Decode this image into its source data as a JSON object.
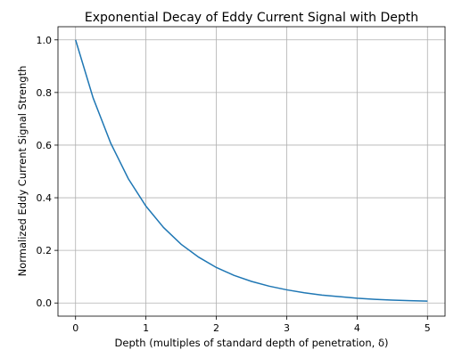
{
  "chart_data": {
    "type": "line",
    "title": "Exponential Decay of Eddy Current Signal with Depth",
    "xlabel": "Depth (multiples of standard depth of penetration, δ)",
    "ylabel": "Normalized Eddy Current Signal Strength",
    "xlim": [
      -0.25,
      5.25
    ],
    "ylim": [
      -0.05,
      1.05
    ],
    "grid": true,
    "x_ticks": [
      {
        "value": 0,
        "label": "0"
      },
      {
        "value": 1,
        "label": "1"
      },
      {
        "value": 2,
        "label": "2"
      },
      {
        "value": 3,
        "label": "3"
      },
      {
        "value": 4,
        "label": "4"
      },
      {
        "value": 5,
        "label": "5"
      }
    ],
    "y_ticks": [
      {
        "value": 0.0,
        "label": "0.0"
      },
      {
        "value": 0.2,
        "label": "0.2"
      },
      {
        "value": 0.4,
        "label": "0.4"
      },
      {
        "value": 0.6,
        "label": "0.6"
      },
      {
        "value": 0.8,
        "label": "0.8"
      },
      {
        "value": 1.0,
        "label": "1.0"
      }
    ],
    "series": [
      {
        "color": "#1f77b4",
        "x": [
          0,
          0.25,
          0.5,
          0.75,
          1.0,
          1.25,
          1.5,
          1.75,
          2.0,
          2.25,
          2.5,
          2.75,
          3.0,
          3.25,
          3.5,
          3.75,
          4.0,
          4.25,
          4.5,
          4.75,
          5.0
        ],
        "y": [
          1.0,
          0.779,
          0.607,
          0.472,
          0.368,
          0.287,
          0.223,
          0.174,
          0.135,
          0.105,
          0.082,
          0.064,
          0.05,
          0.039,
          0.03,
          0.024,
          0.018,
          0.014,
          0.011,
          0.009,
          0.007
        ]
      }
    ]
  }
}
